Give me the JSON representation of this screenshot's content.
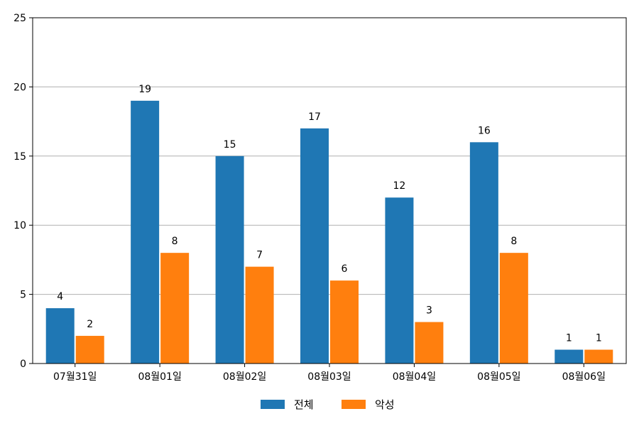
{
  "chart_data": {
    "type": "bar",
    "categories": [
      "07월31일",
      "08월01일",
      "08월02일",
      "08월03일",
      "08월04일",
      "08월05일",
      "08월06일"
    ],
    "series": [
      {
        "name": "전체",
        "values": [
          4,
          19,
          15,
          17,
          12,
          16,
          1
        ],
        "color": "#1f77b4"
      },
      {
        "name": "악성",
        "values": [
          2,
          8,
          7,
          6,
          3,
          8,
          1
        ],
        "color": "#ff7f0e"
      }
    ],
    "ylim": [
      0,
      25
    ],
    "yticks": [
      0,
      5,
      10,
      15,
      20,
      25
    ],
    "grid": "horizontal",
    "legend": "bottom-center",
    "data_labels": true
  }
}
